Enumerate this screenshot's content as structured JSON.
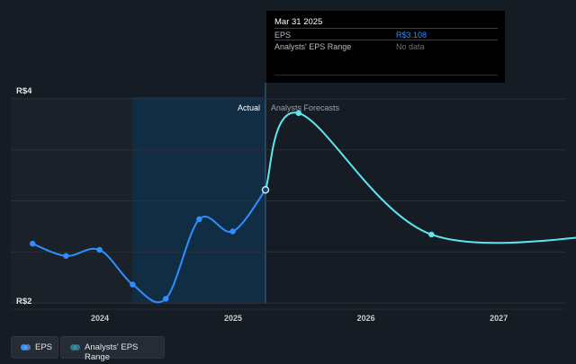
{
  "chart_data": {
    "type": "line",
    "x_ticks": [
      "2024",
      "2025",
      "2026",
      "2027"
    ],
    "y_ticks": [
      "R$4",
      "R$2"
    ],
    "ylim": [
      2,
      4
    ],
    "sections": {
      "actual": "Actual",
      "forecast": "Analysts Forecasts"
    },
    "series": [
      {
        "name": "EPS",
        "type": "actual",
        "color": "#2f8fff",
        "points": [
          {
            "date": "2023-06-30",
            "value": 2.58
          },
          {
            "date": "2023-09-30",
            "value": 2.46
          },
          {
            "date": "2023-12-31",
            "value": 2.52
          },
          {
            "date": "2024-03-31",
            "value": 2.18
          },
          {
            "date": "2024-06-30",
            "value": 2.04
          },
          {
            "date": "2024-09-30",
            "value": 2.82
          },
          {
            "date": "2024-12-31",
            "value": 2.7
          },
          {
            "date": "2025-03-31",
            "value": 3.108
          }
        ]
      },
      {
        "name": "EPS",
        "type": "forecast",
        "color": "#5ee6ee",
        "points": [
          {
            "date": "2025-03-31",
            "value": 3.108
          },
          {
            "date": "2025-06-30",
            "value": 3.86
          },
          {
            "date": "2026-06-30",
            "value": 2.67
          },
          {
            "date": "2027-12-31",
            "value": 2.69
          }
        ]
      }
    ],
    "grid": true,
    "legend": "bottom-left"
  },
  "tooltip": {
    "date": "Mar 31 2025",
    "rows": [
      {
        "label": "EPS",
        "value": "R$3.108"
      },
      {
        "label": "Analysts' EPS Range",
        "value": "No data"
      }
    ]
  },
  "legend": {
    "items": [
      {
        "label": "EPS",
        "color": "#2f8fff"
      },
      {
        "label": "Analysts' EPS Range",
        "color": "#2c7a8a"
      }
    ]
  },
  "colors": {
    "background": "#161c24",
    "past_shade": "#1b2128",
    "highlight": "#10304a",
    "grid": "#2a3038"
  }
}
